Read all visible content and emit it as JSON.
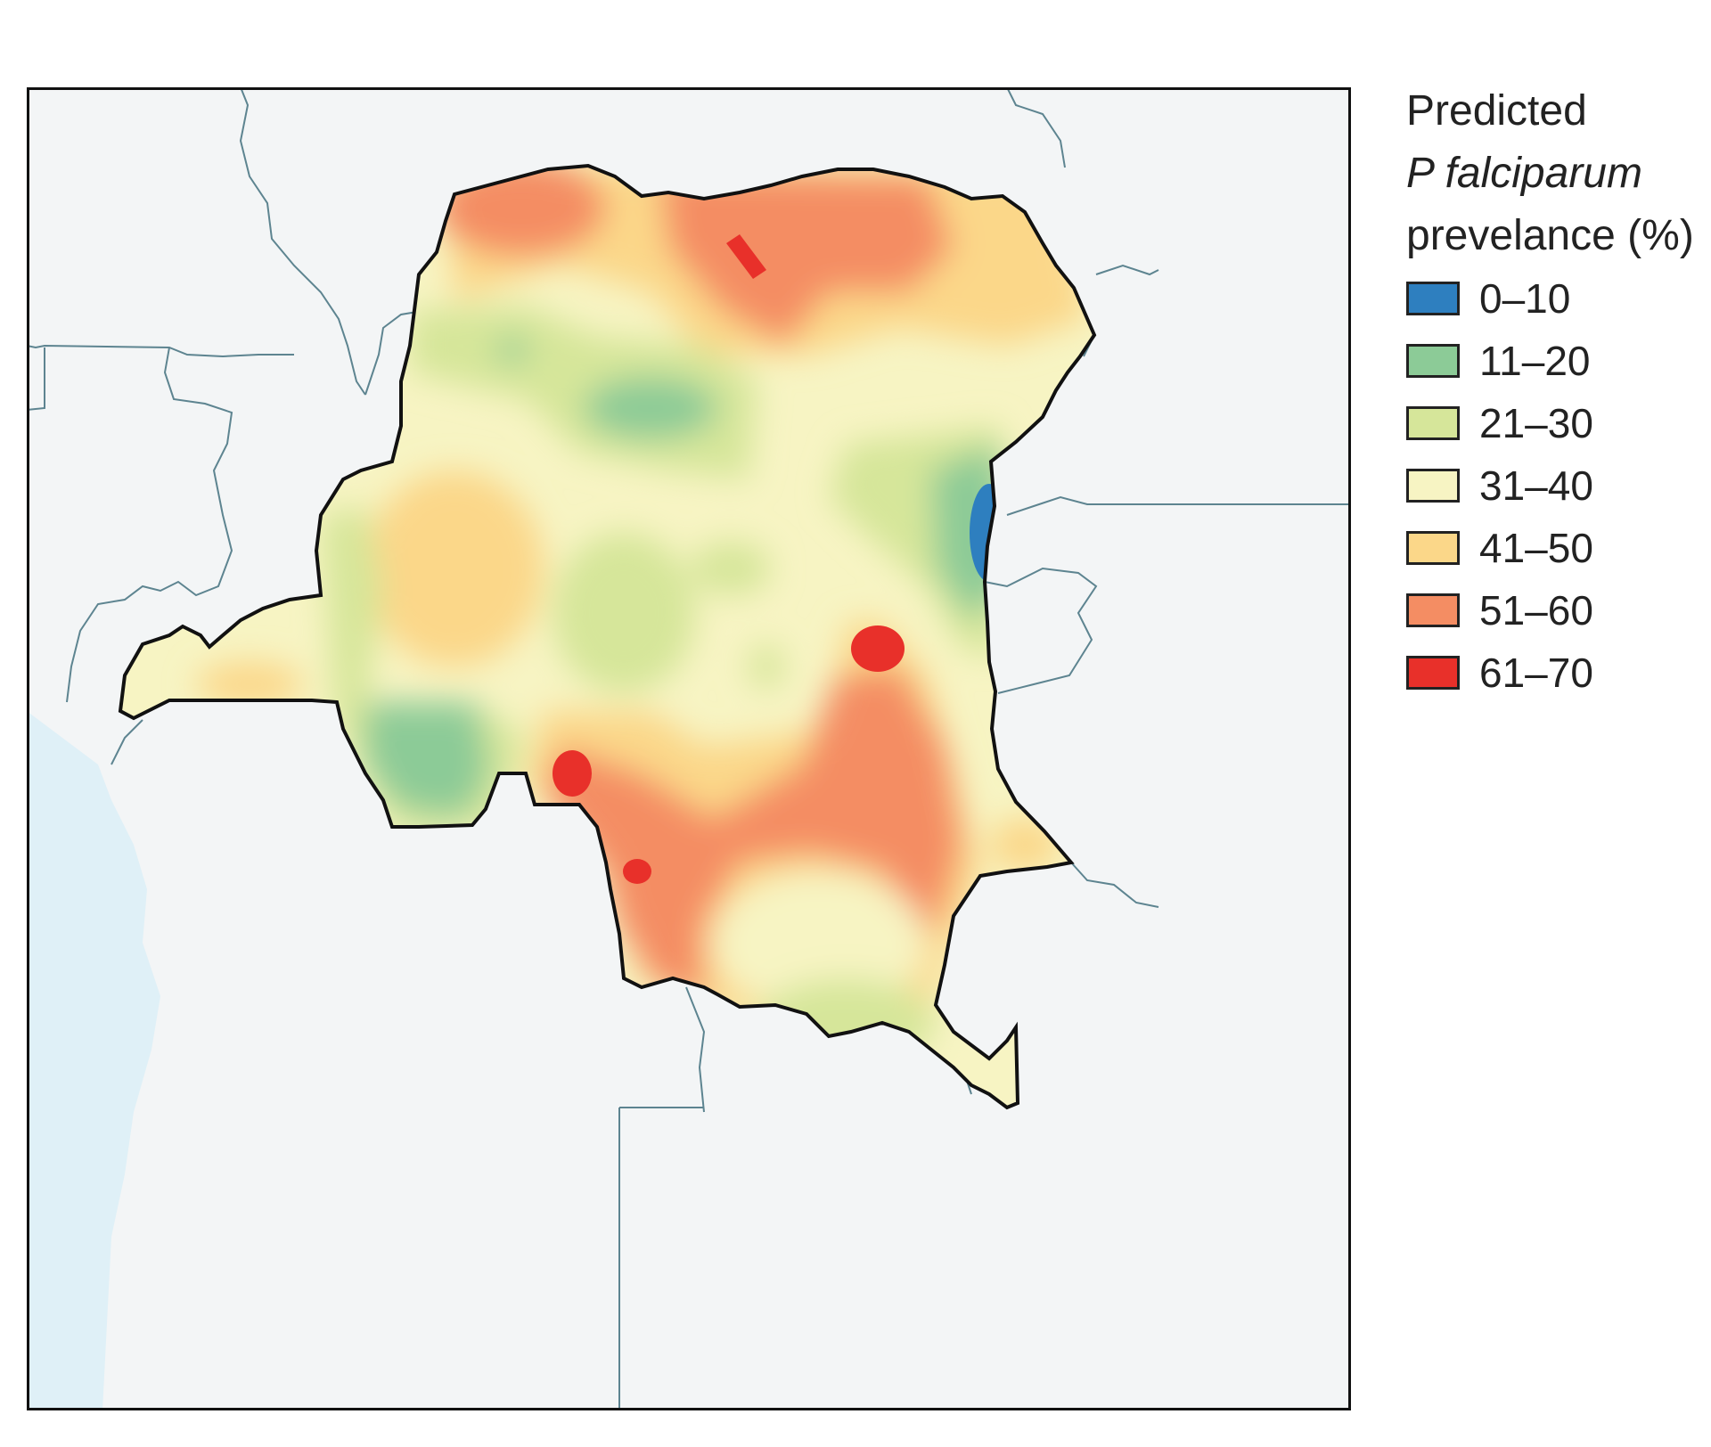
{
  "legend": {
    "title_line1": "Predicted",
    "title_line2": "P falciparum",
    "title_line3": "prevelance (%)",
    "items": [
      {
        "label": "0–10",
        "color": "#2e7fbf"
      },
      {
        "label": "11–20",
        "color": "#8ccb97"
      },
      {
        "label": "21–30",
        "color": "#d6e69a"
      },
      {
        "label": "31–40",
        "color": "#f7f4c3"
      },
      {
        "label": "41–50",
        "color": "#fbd789"
      },
      {
        "label": "51–60",
        "color": "#f48d63"
      },
      {
        "label": "61–70",
        "color": "#e8302a"
      }
    ]
  },
  "colors": {
    "land_outside": "#f3f5f6",
    "water": "#dff0f7",
    "border_line": "#5d8490",
    "country_outline": "#111111"
  }
}
